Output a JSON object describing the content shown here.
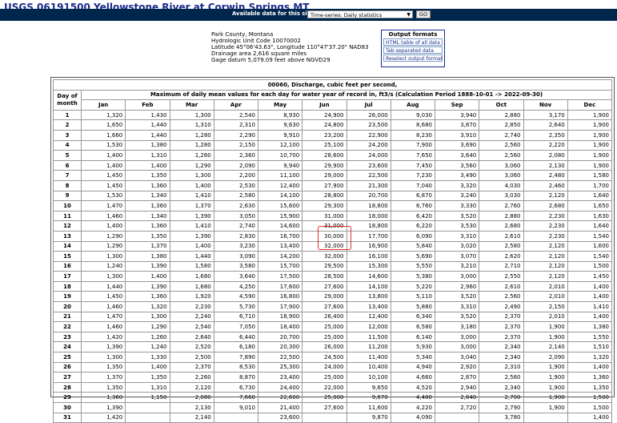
{
  "page": {
    "title": "USGS 06191500 Yellowstone River at Corwin Springs MT"
  },
  "selector": {
    "label": "Available data for this site",
    "selected": "Time-series:   Daily statistics",
    "go_label": "GO"
  },
  "site_info": {
    "lines": [
      "Park County, Montana",
      "Hydrologic Unit Code 10070002",
      "Latitude  45°06'43.63\",  Longitude 110°47'37.20\" NAD83",
      "Drainage area 2,616  square miles",
      "Gage datum 5,079.09 feet above NGVD29"
    ]
  },
  "output_formats": {
    "heading": "Output formats",
    "links": [
      "HTML table of all data",
      "Tab-separated data",
      "Reselect output format"
    ]
  },
  "table": {
    "parameter": "00060, Discharge, cubic feet per second,",
    "day_header": "Day of month",
    "caption": "Maximum of daily mean values for each day for water year of record in, ft3/s   (Calculation Period 1888-10-01 -> 2022-09-30)",
    "months": [
      "Jan",
      "Feb",
      "Mar",
      "Apr",
      "May",
      "Jun",
      "Jul",
      "Aug",
      "Sep",
      "Oct",
      "Nov",
      "Dec"
    ],
    "rows": [
      [
        "1",
        "1,320",
        "1,430",
        "1,300",
        "2,540",
        "8,930",
        "24,900",
        "26,000",
        "9,030",
        "3,940",
        "2,880",
        "3,170",
        "1,900"
      ],
      [
        "2",
        "1,650",
        "1,440",
        "1,310",
        "2,310",
        "9,630",
        "24,800",
        "23,500",
        "8,680",
        "3,870",
        "2,850",
        "2,640",
        "1,900"
      ],
      [
        "3",
        "1,660",
        "1,440",
        "1,280",
        "2,290",
        "9,910",
        "23,200",
        "22,900",
        "8,230",
        "3,910",
        "2,740",
        "2,350",
        "1,900"
      ],
      [
        "4",
        "1,530",
        "1,380",
        "1,280",
        "2,150",
        "12,100",
        "25,100",
        "24,200",
        "7,900",
        "3,690",
        "2,560",
        "2,220",
        "1,900"
      ],
      [
        "5",
        "1,400",
        "1,310",
        "1,260",
        "2,360",
        "10,700",
        "28,600",
        "24,000",
        "7,650",
        "3,640",
        "2,560",
        "2,080",
        "1,900"
      ],
      [
        "6",
        "1,400",
        "1,400",
        "1,290",
        "2,090",
        "9,940",
        "29,900",
        "23,600",
        "7,450",
        "3,560",
        "3,060",
        "2,130",
        "1,900"
      ],
      [
        "7",
        "1,450",
        "1,350",
        "1,300",
        "2,200",
        "11,100",
        "29,000",
        "22,500",
        "7,230",
        "3,490",
        "3,060",
        "2,480",
        "1,580"
      ],
      [
        "8",
        "1,450",
        "1,360",
        "1,400",
        "2,530",
        "12,400",
        "27,900",
        "21,300",
        "7,040",
        "3,320",
        "4,030",
        "2,460",
        "1,700"
      ],
      [
        "9",
        "1,530",
        "1,340",
        "1,410",
        "2,580",
        "14,100",
        "28,800",
        "20,700",
        "6,870",
        "3,240",
        "3,030",
        "2,120",
        "1,640"
      ],
      [
        "10",
        "1,470",
        "1,360",
        "1,370",
        "2,630",
        "15,600",
        "29,300",
        "18,800",
        "6,760",
        "3,330",
        "2,760",
        "2,680",
        "1,650"
      ],
      [
        "11",
        "1,460",
        "1,340",
        "1,390",
        "3,050",
        "15,900",
        "31,000",
        "18,000",
        "6,420",
        "3,520",
        "2,880",
        "2,230",
        "1,630"
      ],
      [
        "12",
        "1,400",
        "1,360",
        "1,410",
        "2,740",
        "14,600",
        "31,000",
        "18,800",
        "6,220",
        "3,530",
        "2,680",
        "2,230",
        "1,640"
      ],
      [
        "13",
        "1,290",
        "1,350",
        "1,390",
        "2,830",
        "16,700",
        "30,000",
        "17,700",
        "6,090",
        "3,310",
        "2,610",
        "2,230",
        "1,540"
      ],
      [
        "14",
        "1,290",
        "1,370",
        "1,400",
        "3,230",
        "13,400",
        "32,000",
        "16,900",
        "5,840",
        "3,020",
        "2,580",
        "2,120",
        "1,600"
      ],
      [
        "15",
        "1,300",
        "1,380",
        "1,440",
        "3,090",
        "14,200",
        "32,000",
        "16,100",
        "5,690",
        "3,070",
        "2,620",
        "2,120",
        "1,540"
      ],
      [
        "16",
        "1,240",
        "1,390",
        "1,580",
        "3,580",
        "15,700",
        "29,500",
        "15,300",
        "5,550",
        "3,210",
        "2,710",
        "2,120",
        "1,500"
      ],
      [
        "17",
        "1,300",
        "1,400",
        "1,680",
        "3,640",
        "17,500",
        "28,500",
        "14,600",
        "5,380",
        "3,000",
        "2,550",
        "2,120",
        "1,450"
      ],
      [
        "18",
        "1,440",
        "1,390",
        "1,680",
        "4,250",
        "17,600",
        "27,600",
        "14,100",
        "5,220",
        "2,960",
        "2,610",
        "2,010",
        "1,400"
      ],
      [
        "19",
        "1,450",
        "1,360",
        "1,920",
        "4,590",
        "16,800",
        "29,000",
        "13,800",
        "5,110",
        "3,520",
        "2,560",
        "2,010",
        "1,400"
      ],
      [
        "20",
        "1,460",
        "1,320",
        "2,230",
        "5,730",
        "17,900",
        "27,600",
        "13,400",
        "5,880",
        "3,310",
        "2,490",
        "2,150",
        "1,410"
      ],
      [
        "21",
        "1,470",
        "1,300",
        "2,240",
        "6,710",
        "18,900",
        "26,400",
        "12,400",
        "6,340",
        "3,520",
        "2,370",
        "2,010",
        "1,400"
      ],
      [
        "22",
        "1,460",
        "1,290",
        "2,540",
        "7,050",
        "18,400",
        "25,000",
        "12,000",
        "6,580",
        "3,180",
        "2,370",
        "1,900",
        "1,380"
      ],
      [
        "23",
        "1,420",
        "1,260",
        "2,640",
        "6,440",
        "20,700",
        "25,000",
        "11,500",
        "6,140",
        "3,000",
        "2,370",
        "1,900",
        "1,550"
      ],
      [
        "24",
        "1,390",
        "1,240",
        "2,520",
        "6,180",
        "20,300",
        "26,000",
        "11,200",
        "5,930",
        "3,000",
        "2,340",
        "2,140",
        "1,510"
      ],
      [
        "25",
        "1,300",
        "1,330",
        "2,500",
        "7,890",
        "22,500",
        "24,500",
        "11,400",
        "5,340",
        "3,040",
        "2,340",
        "2,090",
        "1,320"
      ],
      [
        "26",
        "1,350",
        "1,400",
        "2,370",
        "8,530",
        "25,300",
        "24,000",
        "10,400",
        "4,940",
        "2,920",
        "2,310",
        "1,900",
        "1,400"
      ],
      [
        "27",
        "1,370",
        "1,350",
        "2,260",
        "8,870",
        "23,400",
        "25,000",
        "10,100",
        "4,660",
        "2,870",
        "2,560",
        "1,900",
        "1,360"
      ],
      [
        "28",
        "1,350",
        "1,310",
        "2,120",
        "6,730",
        "24,400",
        "22,000",
        "9,650",
        "4,520",
        "2,940",
        "2,340",
        "1,900",
        "1,350"
      ],
      [
        "29",
        "1,360",
        "1,150",
        "2,080",
        "7,660",
        "22,600",
        "25,000",
        "9,870",
        "4,480",
        "2,840",
        "2,700",
        "1,900",
        "1,500"
      ],
      [
        "30",
        "1,390",
        "",
        "2,130",
        "9,010",
        "21,400",
        "27,600",
        "11,600",
        "4,220",
        "2,720",
        "2,790",
        "1,900",
        "1,500"
      ],
      [
        "31",
        "1,420",
        "",
        "2,140",
        "",
        "23,600",
        "",
        "9,870",
        "4,090",
        "",
        "3,780",
        "",
        "1,400"
      ]
    ]
  },
  "colors": {
    "header_bar": "#00264c",
    "title": "#1a2b8c",
    "highlight": "#e53030"
  }
}
